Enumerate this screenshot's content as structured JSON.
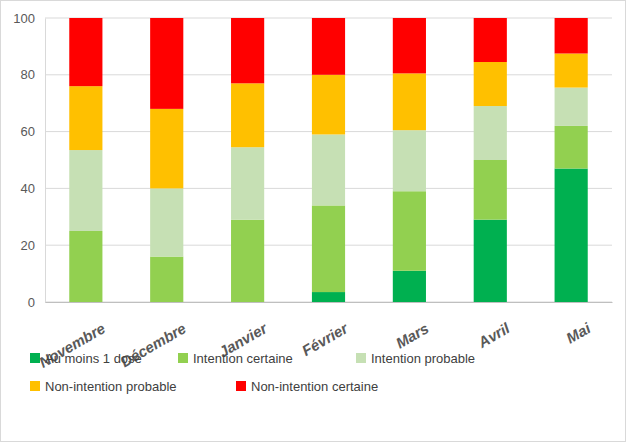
{
  "chart_data": {
    "type": "bar",
    "stacked": true,
    "grid": true,
    "legend": "bottom",
    "categories": [
      "Novembre",
      "Décembre",
      "Janvier",
      "Février",
      "Mars",
      "Avril",
      "Mai"
    ],
    "series": [
      {
        "name": "Au moins 1 dose",
        "color": "#00b050",
        "values": [
          0,
          0,
          0,
          3.5,
          11,
          29,
          47
        ]
      },
      {
        "name": "Intention certaine",
        "color": "#92d050",
        "values": [
          25,
          16,
          29,
          30.5,
          28,
          21,
          15
        ]
      },
      {
        "name": "Intention probable",
        "color": "#c6e0b4",
        "values": [
          28.5,
          24,
          25.5,
          25,
          21.5,
          19,
          13.5
        ]
      },
      {
        "name": "Non-intention probable",
        "color": "#ffc000",
        "values": [
          22.5,
          28,
          22.5,
          21,
          20,
          15.5,
          12
        ]
      },
      {
        "name": "Non-intention certaine",
        "color": "#ff0000",
        "values": [
          24,
          32,
          23,
          20,
          19.5,
          15.5,
          12.5
        ]
      }
    ],
    "ylim": [
      0,
      100
    ],
    "yticks": [
      0,
      20,
      40,
      60,
      80,
      100
    ]
  }
}
